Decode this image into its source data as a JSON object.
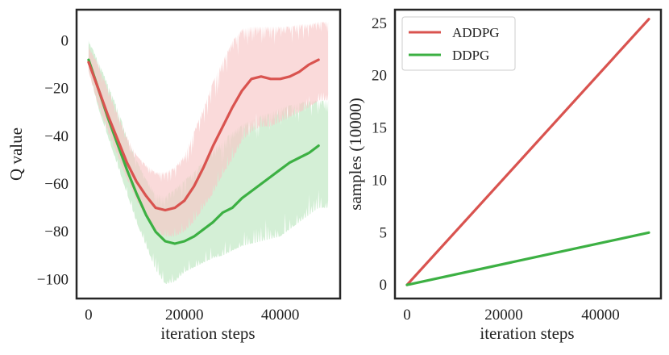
{
  "chart_data": [
    {
      "type": "line",
      "title": "",
      "xlabel": "iteration steps",
      "ylabel": "Q value",
      "xlim": [
        -2500,
        52500
      ],
      "ylim": [
        -108,
        13
      ],
      "xticks": [
        0,
        20000,
        40000
      ],
      "xtick_labels": [
        "0",
        "20000",
        "40000"
      ],
      "yticks": [
        0,
        -20,
        -40,
        -60,
        -80,
        -100
      ],
      "ytick_labels": [
        "0",
        "−20",
        "−40",
        "−60",
        "−80",
        "−100"
      ],
      "grid": false,
      "legend": "none",
      "series": [
        {
          "name": "ADDPG",
          "color": "#d9534f",
          "band_color": "#f7c6c6",
          "x": [
            0,
            2000,
            4000,
            6000,
            8000,
            10000,
            12000,
            14000,
            16000,
            18000,
            20000,
            22000,
            24000,
            26000,
            28000,
            30000,
            32000,
            34000,
            36000,
            38000,
            40000,
            42000,
            44000,
            46000,
            48000
          ],
          "mean": [
            -9,
            -20,
            -31,
            -41,
            -51,
            -59,
            -65,
            -70,
            -71,
            -70,
            -67,
            -61,
            -53,
            -44,
            -36,
            -28,
            -21,
            -16,
            -15,
            -16,
            -16,
            -15,
            -13,
            -10,
            -8
          ],
          "upper": [
            -2,
            -10,
            -20,
            -30,
            -40,
            -48,
            -52,
            -55,
            -55,
            -53,
            -48,
            -38,
            -28,
            -17,
            -8,
            0,
            5,
            6,
            6,
            6,
            6,
            6,
            7,
            7,
            8
          ],
          "lower": [
            -13,
            -27,
            -38,
            -48,
            -58,
            -67,
            -74,
            -80,
            -82,
            -82,
            -80,
            -76,
            -70,
            -64,
            -56,
            -50,
            -42,
            -38,
            -36,
            -36,
            -34,
            -32,
            -30,
            -28,
            -25
          ]
        },
        {
          "name": "DDPG",
          "color": "#3cb043",
          "band_color": "#cdeccf",
          "x": [
            0,
            2000,
            4000,
            6000,
            8000,
            10000,
            12000,
            14000,
            16000,
            18000,
            20000,
            22000,
            24000,
            26000,
            28000,
            30000,
            32000,
            34000,
            36000,
            38000,
            40000,
            42000,
            44000,
            46000,
            48000
          ],
          "mean": [
            -8,
            -20,
            -32,
            -43,
            -54,
            -64,
            -73,
            -80,
            -84,
            -85,
            -84,
            -82,
            -79,
            -76,
            -72,
            -70,
            -66,
            -63,
            -60,
            -57,
            -54,
            -51,
            -49,
            -47,
            -44
          ],
          "upper": [
            0,
            -8,
            -18,
            -28,
            -40,
            -50,
            -58,
            -64,
            -65,
            -62,
            -58,
            -55,
            -50,
            -45,
            -42,
            -38,
            -35,
            -33,
            -31,
            -30,
            -28,
            -27,
            -26,
            -25,
            -25
          ],
          "lower": [
            -12,
            -28,
            -40,
            -52,
            -64,
            -76,
            -86,
            -96,
            -102,
            -101,
            -97,
            -95,
            -93,
            -91,
            -90,
            -88,
            -86,
            -85,
            -84,
            -83,
            -82,
            -79,
            -76,
            -73,
            -70
          ]
        }
      ]
    },
    {
      "type": "line",
      "title": "",
      "xlabel": "iteration steps",
      "ylabel": "samples (10000)",
      "xlim": [
        -2500,
        52500
      ],
      "ylim": [
        -1.3,
        26.3
      ],
      "xticks": [
        0,
        20000,
        40000
      ],
      "xtick_labels": [
        "0",
        "20000",
        "40000"
      ],
      "yticks": [
        0,
        5,
        10,
        15,
        20,
        25
      ],
      "ytick_labels": [
        "0",
        "5",
        "10",
        "15",
        "20",
        "25"
      ],
      "grid": false,
      "legend": "top-left",
      "series": [
        {
          "name": "ADDPG",
          "color": "#d9534f",
          "x": [
            0,
            50000
          ],
          "y": [
            0,
            25.4
          ]
        },
        {
          "name": "DDPG",
          "color": "#3cb043",
          "x": [
            0,
            50000
          ],
          "y": [
            0,
            5
          ]
        }
      ]
    }
  ]
}
